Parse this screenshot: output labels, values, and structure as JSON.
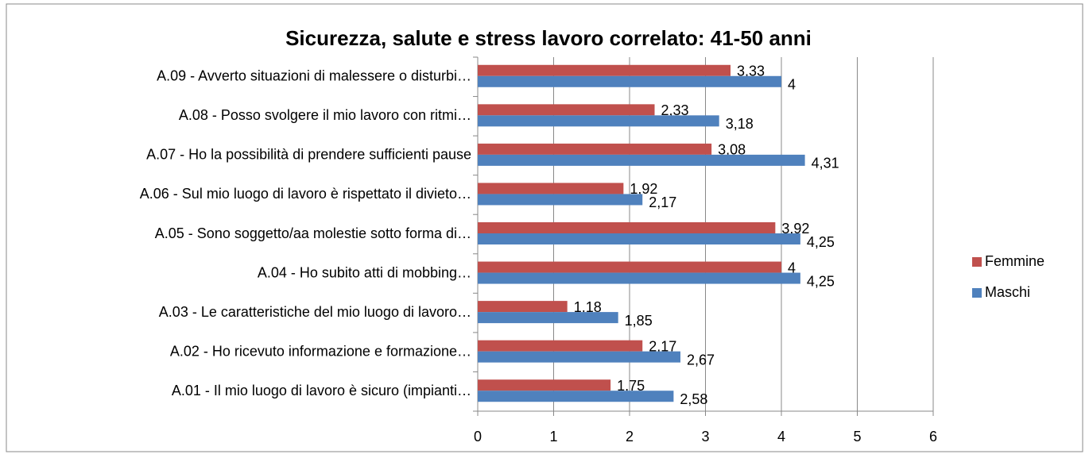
{
  "chart_data": {
    "type": "hbar",
    "title": "Sicurezza, salute e stress lavoro correlato: 41-50 anni",
    "categories": [
      "A.01 - Il mio luogo di lavoro è sicuro (impianti…",
      "A.02 - Ho ricevuto informazione e formazione…",
      "A.03 - Le caratteristiche del mio luogo di lavoro…",
      "A.04 - Ho subito atti di mobbing…",
      "A.05 - Sono soggetto/aa molestie sotto forma di…",
      "A.06 - Sul mio luogo di lavoro è rispettato il divieto…",
      "A.07 - Ho la possibilità di prendere sufficienti pause",
      "A.08 - Posso svolgere il mio lavoro con ritmi…",
      "A.09 - Avverto situazioni di malessere o disturbi…"
    ],
    "series": [
      {
        "name": "Femmine",
        "color": "#c0504d",
        "values": [
          1.75,
          2.17,
          1.18,
          4,
          3.92,
          1.92,
          3.08,
          2.33,
          3.33
        ],
        "value_labels": [
          "1,75",
          "2,17",
          "1,18",
          "4",
          "3,92",
          "1,92",
          "3,08",
          "2,33",
          "3,33"
        ]
      },
      {
        "name": "Maschi",
        "color": "#4f81bd",
        "values": [
          2.58,
          2.67,
          1.85,
          4.25,
          4.25,
          2.17,
          4.31,
          3.18,
          4
        ],
        "value_labels": [
          "2,58",
          "2,67",
          "1,85",
          "4,25",
          "4,25",
          "2,17",
          "4,31",
          "3,18",
          "4"
        ]
      }
    ],
    "xlim": [
      0,
      6
    ],
    "xticks": [
      0,
      1,
      2,
      3,
      4,
      5,
      6
    ],
    "grid": true,
    "legend": "right"
  }
}
